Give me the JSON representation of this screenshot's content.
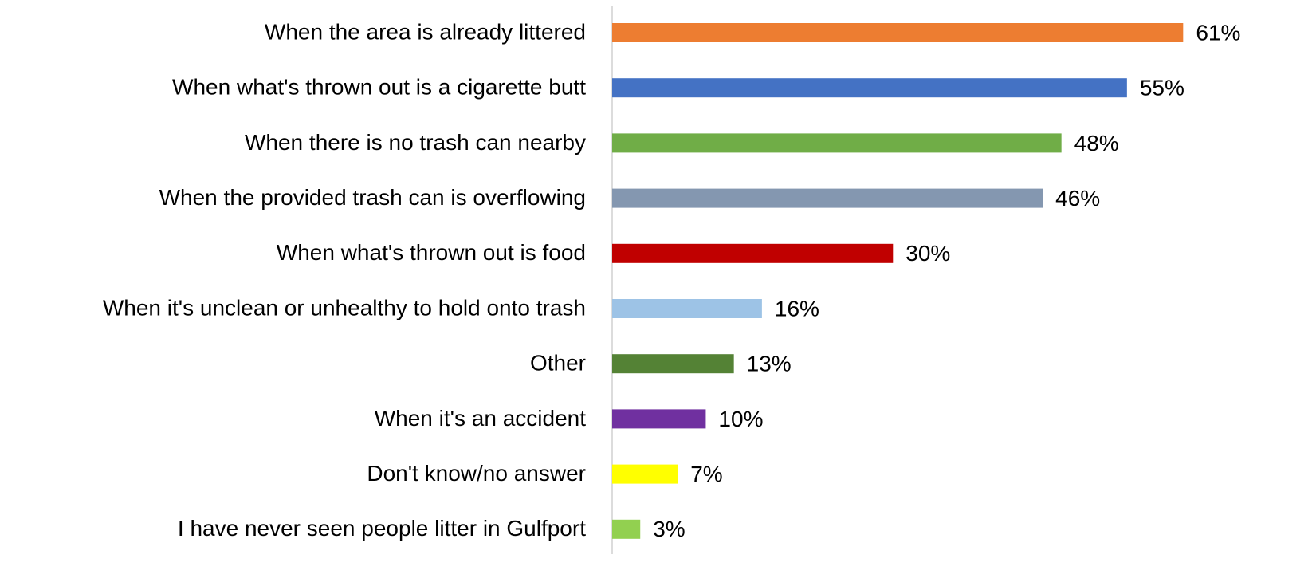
{
  "chart_data": {
    "type": "barh",
    "categories": [
      "When the area is already littered",
      "When what's thrown out is a cigarette butt",
      "When there is no trash can nearby",
      "When the provided trash can is overflowing",
      "When what's thrown out is food",
      "When it's unclean or unhealthy to hold onto trash",
      "Other",
      "When it's an accident",
      "Don't know/no answer",
      "I have never seen people litter in Gulfport"
    ],
    "values": [
      61,
      55,
      48,
      46,
      30,
      16,
      13,
      10,
      7,
      3
    ],
    "value_labels": [
      "61%",
      "55%",
      "48%",
      "46%",
      "30%",
      "16%",
      "13%",
      "10%",
      "7%",
      "3%"
    ],
    "colors": [
      "#ed7d31",
      "#4472c4",
      "#70ad47",
      "#8497b0",
      "#c00000",
      "#9dc3e6",
      "#548235",
      "#7030a0",
      "#ffff00",
      "#92d050"
    ],
    "xlim": [
      0,
      70
    ]
  }
}
